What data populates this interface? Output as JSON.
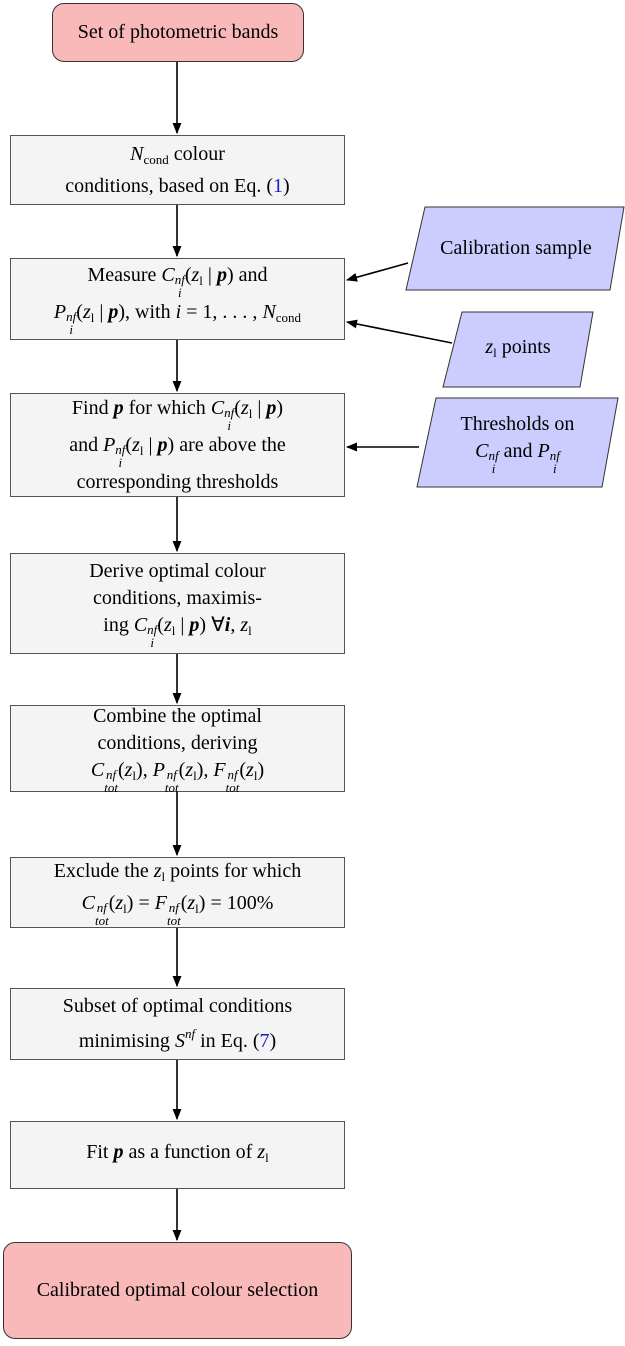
{
  "nodes": [
    {
      "kind": "terminal",
      "lines": [
        [
          {
            "text": "Set of photometric bands"
          }
        ]
      ]
    },
    {
      "kind": "process",
      "lines": [
        [
          {
            "text": "N",
            "style": "i"
          },
          {
            "text": "cond",
            "style": "sub"
          },
          {
            "text": " colour"
          }
        ],
        [
          {
            "text": "conditions, based on Eq. ("
          },
          {
            "text": "1",
            "style": "link"
          },
          {
            "text": ")"
          }
        ]
      ]
    },
    {
      "kind": "process",
      "lines": [
        [
          {
            "text": "Measure "
          },
          {
            "text": "C",
            "style": "i"
          },
          {
            "text": "nf",
            "style": "ss",
            "sub": "i"
          },
          {
            "text": "("
          },
          {
            "text": "z",
            "style": "i"
          },
          {
            "text": "l",
            "style": "sub"
          },
          {
            "text": " | "
          },
          {
            "text": "p",
            "style": "b"
          },
          {
            "text": ") and"
          }
        ],
        [
          {
            "text": "P",
            "style": "i"
          },
          {
            "text": "nf",
            "style": "ss",
            "sub": "i"
          },
          {
            "text": "("
          },
          {
            "text": "z",
            "style": "i"
          },
          {
            "text": "l",
            "style": "sub"
          },
          {
            "text": " | "
          },
          {
            "text": "p",
            "style": "b"
          },
          {
            "text": "), with "
          },
          {
            "text": "i",
            "style": "i"
          },
          {
            "text": " = 1, . . . , "
          },
          {
            "text": "N",
            "style": "i"
          },
          {
            "text": "cond",
            "style": "sub"
          }
        ]
      ]
    },
    {
      "kind": "process",
      "lines": [
        [
          {
            "text": "Find "
          },
          {
            "text": "p",
            "style": "b"
          },
          {
            "text": " for which "
          },
          {
            "text": "C",
            "style": "i"
          },
          {
            "text": "nf",
            "style": "ss",
            "sub": "i"
          },
          {
            "text": "("
          },
          {
            "text": "z",
            "style": "i"
          },
          {
            "text": "l",
            "style": "sub"
          },
          {
            "text": " | "
          },
          {
            "text": "p",
            "style": "b"
          },
          {
            "text": ")"
          }
        ],
        [
          {
            "text": "and "
          },
          {
            "text": "P",
            "style": "i"
          },
          {
            "text": "nf",
            "style": "ss",
            "sub": "i"
          },
          {
            "text": "("
          },
          {
            "text": "z",
            "style": "i"
          },
          {
            "text": "l",
            "style": "sub"
          },
          {
            "text": " | "
          },
          {
            "text": "p",
            "style": "b"
          },
          {
            "text": ") are above the"
          }
        ],
        [
          {
            "text": "corresponding thresholds"
          }
        ]
      ]
    },
    {
      "kind": "process",
      "lines": [
        [
          {
            "text": "Derive optimal colour"
          }
        ],
        [
          {
            "text": "conditions, maximis-"
          }
        ],
        [
          {
            "text": "ing "
          },
          {
            "text": "C",
            "style": "i"
          },
          {
            "text": "nf",
            "style": "ss",
            "sub": "i"
          },
          {
            "text": "("
          },
          {
            "text": "z",
            "style": "i"
          },
          {
            "text": "l",
            "style": "sub"
          },
          {
            "text": " | "
          },
          {
            "text": "p",
            "style": "b"
          },
          {
            "text": ") ∀"
          },
          {
            "text": "i",
            "style": "b"
          },
          {
            "text": ", "
          },
          {
            "text": "z",
            "style": "i"
          },
          {
            "text": "l",
            "style": "sub"
          }
        ]
      ]
    },
    {
      "kind": "process",
      "lines": [
        [
          {
            "text": "Combine the optimal"
          }
        ],
        [
          {
            "text": "conditions, deriving"
          }
        ],
        [
          {
            "text": "C",
            "style": "i"
          },
          {
            "text": "nf",
            "style": "ss",
            "sub": "tot"
          },
          {
            "text": "("
          },
          {
            "text": "z",
            "style": "i"
          },
          {
            "text": "l",
            "style": "sub"
          },
          {
            "text": "), "
          },
          {
            "text": "P",
            "style": "i"
          },
          {
            "text": "nf",
            "style": "ss",
            "sub": "tot"
          },
          {
            "text": "("
          },
          {
            "text": "z",
            "style": "i"
          },
          {
            "text": "l",
            "style": "sub"
          },
          {
            "text": "), "
          },
          {
            "text": "F",
            "style": "i"
          },
          {
            "text": "nf",
            "style": "ss",
            "sub": "tot"
          },
          {
            "text": "("
          },
          {
            "text": "z",
            "style": "i"
          },
          {
            "text": "l",
            "style": "sub"
          },
          {
            "text": ")"
          }
        ]
      ]
    },
    {
      "kind": "process",
      "lines": [
        [
          {
            "text": "Exclude the "
          },
          {
            "text": "z",
            "style": "i"
          },
          {
            "text": "l",
            "style": "sub"
          },
          {
            "text": " points for which"
          }
        ],
        [
          {
            "text": "C",
            "style": "i"
          },
          {
            "text": "nf",
            "style": "ss",
            "sub": "tot"
          },
          {
            "text": "("
          },
          {
            "text": "z",
            "style": "i"
          },
          {
            "text": "l",
            "style": "sub"
          },
          {
            "text": ") = "
          },
          {
            "text": "F",
            "style": "i"
          },
          {
            "text": "nf",
            "style": "ss",
            "sub": "tot"
          },
          {
            "text": "("
          },
          {
            "text": "z",
            "style": "i"
          },
          {
            "text": "l",
            "style": "sub"
          },
          {
            "text": ") = 100%"
          }
        ]
      ]
    },
    {
      "kind": "process",
      "lines": [
        [
          {
            "text": "Subset of optimal conditions"
          }
        ],
        [
          {
            "text": "minimising "
          },
          {
            "text": "S",
            "style": "i"
          },
          {
            "text": "nf",
            "style": "sup"
          },
          {
            "text": " in Eq. ("
          },
          {
            "text": "7",
            "style": "link"
          },
          {
            "text": ")"
          }
        ]
      ]
    },
    {
      "kind": "process",
      "lines": [
        [
          {
            "text": "Fit "
          },
          {
            "text": "p",
            "style": "b"
          },
          {
            "text": " as a function of "
          },
          {
            "text": "z",
            "style": "i"
          },
          {
            "text": "l",
            "style": "sub"
          }
        ]
      ]
    },
    {
      "kind": "terminal",
      "lines": [
        [
          {
            "text": "Calibrated optimal colour selection"
          }
        ]
      ]
    }
  ],
  "inputs": [
    {
      "lines": [
        [
          {
            "text": "Calibration sample"
          }
        ]
      ]
    },
    {
      "lines": [
        [
          {
            "text": "z",
            "style": "i"
          },
          {
            "text": "l",
            "style": "sub"
          },
          {
            "text": " points"
          }
        ]
      ]
    },
    {
      "lines": [
        [
          {
            "text": "Thresholds on"
          }
        ],
        [
          {
            "text": "C",
            "style": "i"
          },
          {
            "text": "nf",
            "style": "ss",
            "sub": "i"
          },
          {
            "text": " and "
          },
          {
            "text": "P",
            "style": "i"
          },
          {
            "text": "nf",
            "style": "ss",
            "sub": "i"
          }
        ]
      ]
    }
  ]
}
